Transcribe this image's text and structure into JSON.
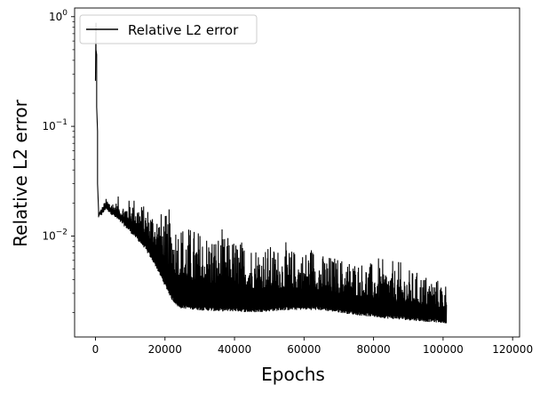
{
  "chart_data": {
    "type": "line",
    "xlabel": "Epochs",
    "ylabel": "Relative L2 error",
    "y_scale": "log",
    "xlim": [
      -6000,
      122000
    ],
    "ylim": [
      0.0012,
      1.2
    ],
    "x_ticks": [
      {
        "value": 0,
        "label": "0"
      },
      {
        "value": 20000,
        "label": "20000"
      },
      {
        "value": 40000,
        "label": "40000"
      },
      {
        "value": 60000,
        "label": "60000"
      },
      {
        "value": 80000,
        "label": "80000"
      },
      {
        "value": 100000,
        "label": "100000"
      },
      {
        "value": 120000,
        "label": "120000"
      }
    ],
    "y_ticks": [
      {
        "value": 0.01,
        "base": "10",
        "exp": "−2"
      },
      {
        "value": 0.1,
        "base": "10",
        "exp": "−1"
      },
      {
        "value": 1,
        "base": "10",
        "exp": "0"
      }
    ],
    "legend": {
      "position": "top-left",
      "entries": [
        "Relative L2 error"
      ]
    },
    "grid": false,
    "series": [
      {
        "name": "Relative L2 error",
        "color": "#000000",
        "peaks": [
          {
            "x": 0,
            "y": 0.26
          },
          {
            "x": 150,
            "y": 0.88
          },
          {
            "x": 350,
            "y": 0.45
          },
          {
            "x": 600,
            "y": 0.09
          },
          {
            "x": 900,
            "y": 0.017
          },
          {
            "x": 2000,
            "y": 0.019
          },
          {
            "x": 3000,
            "y": 0.022
          },
          {
            "x": 5000,
            "y": 0.021
          },
          {
            "x": 8000,
            "y": 0.02
          },
          {
            "x": 11000,
            "y": 0.023
          },
          {
            "x": 14000,
            "y": 0.019
          },
          {
            "x": 17000,
            "y": 0.018
          },
          {
            "x": 20000,
            "y": 0.016
          },
          {
            "x": 23000,
            "y": 0.015
          },
          {
            "x": 26000,
            "y": 0.0128
          },
          {
            "x": 30000,
            "y": 0.0115
          },
          {
            "x": 35000,
            "y": 0.0105
          },
          {
            "x": 40000,
            "y": 0.0097
          },
          {
            "x": 45000,
            "y": 0.0088
          },
          {
            "x": 50000,
            "y": 0.0083
          },
          {
            "x": 55000,
            "y": 0.0078
          },
          {
            "x": 60000,
            "y": 0.0074
          },
          {
            "x": 62000,
            "y": 0.0085
          },
          {
            "x": 65000,
            "y": 0.0069
          },
          {
            "x": 70000,
            "y": 0.0065
          },
          {
            "x": 75000,
            "y": 0.0061
          },
          {
            "x": 80000,
            "y": 0.0057
          },
          {
            "x": 85000,
            "y": 0.0053
          },
          {
            "x": 90000,
            "y": 0.005
          },
          {
            "x": 95000,
            "y": 0.0045
          },
          {
            "x": 101000,
            "y": 0.0038
          }
        ],
        "troughs": [
          {
            "x": 0,
            "y": 0.26
          },
          {
            "x": 150,
            "y": 0.5
          },
          {
            "x": 350,
            "y": 0.15
          },
          {
            "x": 600,
            "y": 0.03
          },
          {
            "x": 900,
            "y": 0.0148
          },
          {
            "x": 2000,
            "y": 0.0155
          },
          {
            "x": 3000,
            "y": 0.0175
          },
          {
            "x": 5000,
            "y": 0.0152
          },
          {
            "x": 8000,
            "y": 0.0125
          },
          {
            "x": 11000,
            "y": 0.01
          },
          {
            "x": 14000,
            "y": 0.0078
          },
          {
            "x": 17000,
            "y": 0.0055
          },
          {
            "x": 20000,
            "y": 0.0035
          },
          {
            "x": 22000,
            "y": 0.0026
          },
          {
            "x": 24000,
            "y": 0.0022
          },
          {
            "x": 30000,
            "y": 0.0021
          },
          {
            "x": 35000,
            "y": 0.00205
          },
          {
            "x": 40000,
            "y": 0.00205
          },
          {
            "x": 45000,
            "y": 0.002
          },
          {
            "x": 50000,
            "y": 0.00205
          },
          {
            "x": 55000,
            "y": 0.0021
          },
          {
            "x": 60000,
            "y": 0.00212
          },
          {
            "x": 65000,
            "y": 0.0021
          },
          {
            "x": 70000,
            "y": 0.002
          },
          {
            "x": 75000,
            "y": 0.0019
          },
          {
            "x": 80000,
            "y": 0.00182
          },
          {
            "x": 85000,
            "y": 0.00175
          },
          {
            "x": 90000,
            "y": 0.0017
          },
          {
            "x": 95000,
            "y": 0.00165
          },
          {
            "x": 101000,
            "y": 0.0016
          }
        ]
      }
    ]
  }
}
